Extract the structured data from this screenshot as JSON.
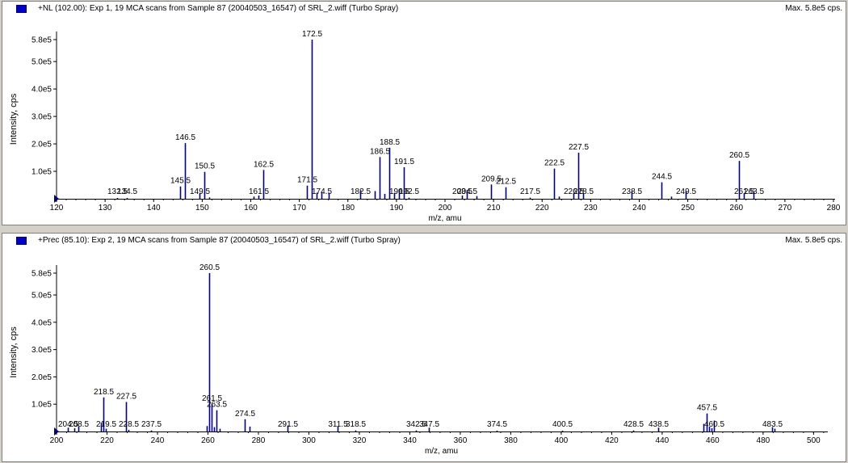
{
  "panels": [
    {
      "title": "+NL (102.00): Exp 1, 19 MCA scans from Sample 87 (20040503_16547) of SRL_2.wiff (Turbo Spray)",
      "max_label": "Max. 5.8e5 cps.",
      "ylabel": "Intensity, cps",
      "xlabel": "m/z, amu",
      "xlim": [
        120,
        280
      ],
      "xticks": [
        "120",
        "130",
        "140",
        "150",
        "160",
        "170",
        "180",
        "190",
        "200",
        "210",
        "220",
        "230",
        "240",
        "250",
        "260",
        "270",
        "280"
      ],
      "yticks": [
        "1.0e5",
        "2.0e5",
        "3.0e5",
        "4.0e5",
        "5.0e5",
        "5.8e5"
      ]
    },
    {
      "title": "+Prec (85.10): Exp 2, 19 MCA scans from Sample 87 (20040503_16547) of SRL_2.wiff (Turbo Spray)",
      "max_label": "Max. 5.8e5 cps.",
      "ylabel": "Intensity, cps",
      "xlabel": "m/z, amu",
      "xlim": [
        200,
        505
      ],
      "xticks": [
        "200",
        "220",
        "240",
        "260",
        "280",
        "300",
        "320",
        "340",
        "360",
        "380",
        "400",
        "420",
        "440",
        "460",
        "480",
        "500"
      ],
      "yticks": [
        "1.0e5",
        "2.0e5",
        "3.0e5",
        "4.0e5",
        "5.0e5",
        "5.8e5"
      ]
    }
  ],
  "colors": {
    "series": "#00008b",
    "axis": "#000000",
    "frame": "#808080",
    "marker": "#000080"
  },
  "chart_data": [
    {
      "type": "bar",
      "title": "+NL (102.00): Exp 1, 19 MCA scans from Sample 87 (20040503_16547) of SRL_2.wiff (Turbo Spray)",
      "xlabel": "m/z, amu",
      "ylabel": "Intensity, cps",
      "xlim": [
        120,
        280
      ],
      "ylim": [
        0,
        580000
      ],
      "grid": false,
      "peaks": [
        {
          "x": 132.5,
          "y": 3000,
          "label": "132.5"
        },
        {
          "x": 134.5,
          "y": 3000,
          "label": "134.5"
        },
        {
          "x": 145.5,
          "y": 45000,
          "label": "145.5"
        },
        {
          "x": 146.5,
          "y": 203000,
          "label": "146.5"
        },
        {
          "x": 149.5,
          "y": 20000,
          "label": "149.5"
        },
        {
          "x": 150.5,
          "y": 98000,
          "label": "150.5"
        },
        {
          "x": 151.5,
          "y": 5000
        },
        {
          "x": 160.5,
          "y": 8000
        },
        {
          "x": 161.5,
          "y": 12000,
          "label": "161.5"
        },
        {
          "x": 162.5,
          "y": 105000,
          "label": "162.5"
        },
        {
          "x": 171.5,
          "y": 48000,
          "label": "171.5"
        },
        {
          "x": 172.5,
          "y": 580000,
          "label": "172.5"
        },
        {
          "x": 173.5,
          "y": 22000
        },
        {
          "x": 174.5,
          "y": 25000,
          "label": "174.5"
        },
        {
          "x": 176.0,
          "y": 22000
        },
        {
          "x": 182.5,
          "y": 32000,
          "label": "182.5"
        },
        {
          "x": 185.5,
          "y": 28000
        },
        {
          "x": 186.5,
          "y": 152000,
          "label": "186.5"
        },
        {
          "x": 187.5,
          "y": 18000
        },
        {
          "x": 188.5,
          "y": 186000,
          "label": "188.5"
        },
        {
          "x": 189.5,
          "y": 22000
        },
        {
          "x": 190.5,
          "y": 35000,
          "label": "190.5"
        },
        {
          "x": 191.5,
          "y": 115000,
          "label": "191.5"
        },
        {
          "x": 192.5,
          "y": 4000,
          "label": "192.5"
        },
        {
          "x": 203.5,
          "y": 12000,
          "label": "203.5"
        },
        {
          "x": 204.5,
          "y": 32000,
          "label": "204.5"
        },
        {
          "x": 206.5,
          "y": 10000
        },
        {
          "x": 209.5,
          "y": 52000,
          "label": "209.5"
        },
        {
          "x": 212.5,
          "y": 42000,
          "label": "212.5"
        },
        {
          "x": 217.5,
          "y": 4000,
          "label": "217.5"
        },
        {
          "x": 222.5,
          "y": 110000,
          "label": "222.5"
        },
        {
          "x": 223.5,
          "y": 8000
        },
        {
          "x": 226.5,
          "y": 20000,
          "label": "226.5"
        },
        {
          "x": 227.5,
          "y": 168000,
          "label": "227.5"
        },
        {
          "x": 228.5,
          "y": 20000,
          "label": "228.5"
        },
        {
          "x": 238.5,
          "y": 28000,
          "label": "238.5"
        },
        {
          "x": 244.5,
          "y": 60000,
          "label": "244.5"
        },
        {
          "x": 246.5,
          "y": 8000
        },
        {
          "x": 249.5,
          "y": 28000,
          "label": "249.5"
        },
        {
          "x": 260.5,
          "y": 138000,
          "label": "260.5"
        },
        {
          "x": 261.5,
          "y": 20000,
          "label": "261.5"
        },
        {
          "x": 263.5,
          "y": 26000,
          "label": "263.5"
        }
      ]
    },
    {
      "type": "bar",
      "title": "+Prec (85.10): Exp 2, 19 MCA scans from Sample 87 (20040503_16547) of SRL_2.wiff (Turbo Spray)",
      "xlabel": "m/z, amu",
      "ylabel": "Intensity, cps",
      "xlim": [
        200,
        505
      ],
      "ylim": [
        0,
        580000
      ],
      "grid": false,
      "peaks": [
        {
          "x": 204.5,
          "y": 14000,
          "label": "204.5"
        },
        {
          "x": 207.0,
          "y": 12000
        },
        {
          "x": 208.5,
          "y": 18000,
          "label": "208.5"
        },
        {
          "x": 217.5,
          "y": 32000
        },
        {
          "x": 218.5,
          "y": 125000,
          "label": "218.5"
        },
        {
          "x": 219.5,
          "y": 10000,
          "label": "219.5"
        },
        {
          "x": 227.5,
          "y": 108000,
          "label": "227.5"
        },
        {
          "x": 228.5,
          "y": 6000,
          "label": "228.5"
        },
        {
          "x": 237.5,
          "y": 4000,
          "label": "237.5"
        },
        {
          "x": 259.5,
          "y": 20000
        },
        {
          "x": 260.5,
          "y": 580000,
          "label": "260.5"
        },
        {
          "x": 261.5,
          "y": 100000,
          "label": "261.5"
        },
        {
          "x": 262.5,
          "y": 16000
        },
        {
          "x": 263.5,
          "y": 78000,
          "label": "263.5"
        },
        {
          "x": 264.5,
          "y": 10000
        },
        {
          "x": 274.5,
          "y": 45000,
          "label": "274.5"
        },
        {
          "x": 276.5,
          "y": 18000
        },
        {
          "x": 291.5,
          "y": 22000,
          "label": "291.5"
        },
        {
          "x": 311.5,
          "y": 18000,
          "label": "311.5"
        },
        {
          "x": 318.5,
          "y": 4000,
          "label": "318.5"
        },
        {
          "x": 342.5,
          "y": 4000,
          "label": "342.5"
        },
        {
          "x": 347.5,
          "y": 14000,
          "label": "347.5"
        },
        {
          "x": 374.5,
          "y": 3000,
          "label": "374.5"
        },
        {
          "x": 400.5,
          "y": 3000,
          "label": "400.5"
        },
        {
          "x": 428.5,
          "y": 4000,
          "label": "428.5"
        },
        {
          "x": 438.5,
          "y": 14000,
          "label": "438.5"
        },
        {
          "x": 456.5,
          "y": 28000
        },
        {
          "x": 457.5,
          "y": 66000,
          "label": "457.5"
        },
        {
          "x": 458.5,
          "y": 18000
        },
        {
          "x": 459.5,
          "y": 12000
        },
        {
          "x": 460.5,
          "y": 40000,
          "label": "460.5"
        },
        {
          "x": 483.5,
          "y": 16000,
          "label": "483.5"
        },
        {
          "x": 484.5,
          "y": 10000
        }
      ]
    }
  ]
}
